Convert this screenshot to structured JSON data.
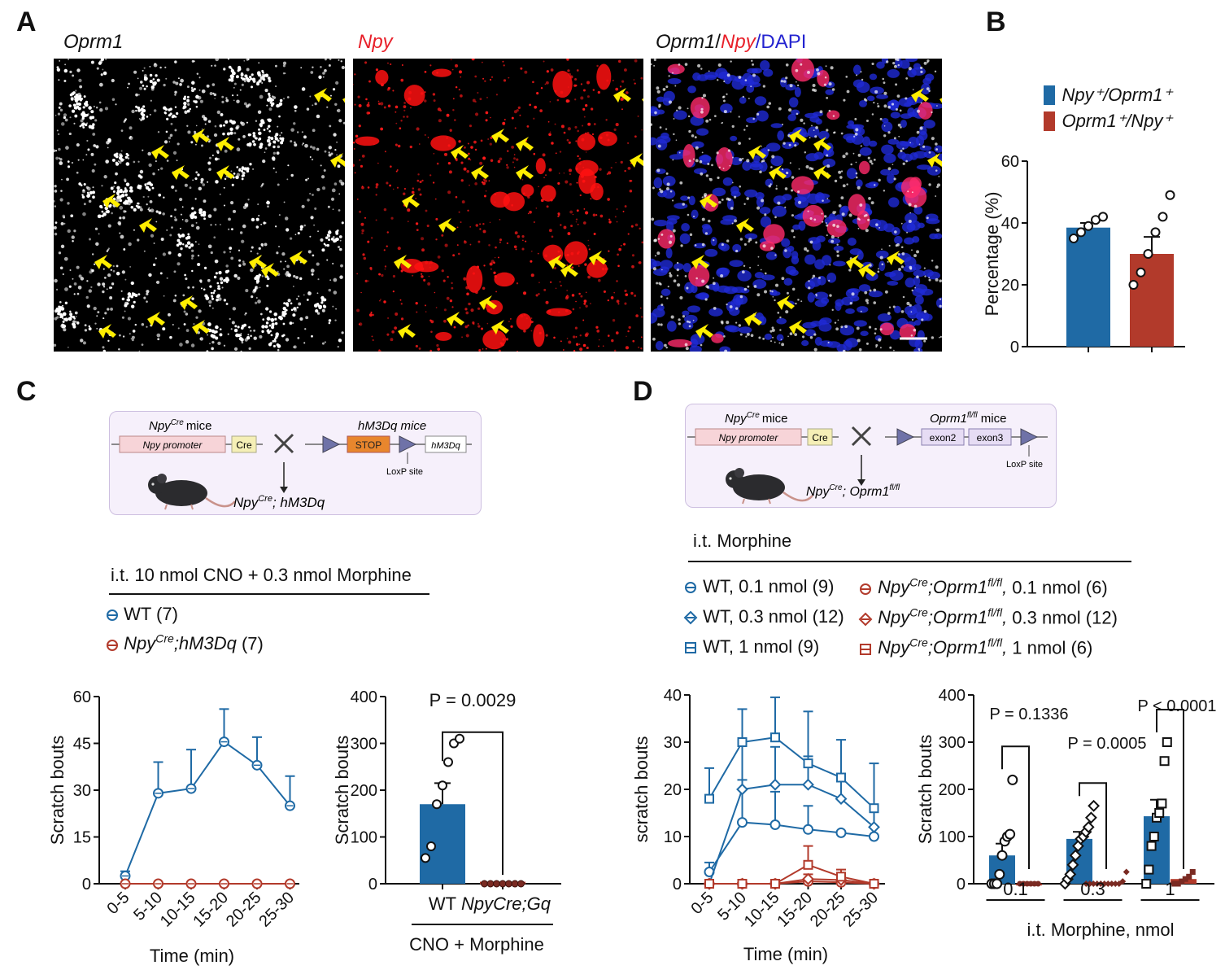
{
  "panels": {
    "A": {
      "letter": "A",
      "titles": {
        "oprm1": "Oprm1",
        "npy": "Npy",
        "merge_parts": [
          "Oprm1",
          "/",
          "Npy",
          "/",
          "DAPI"
        ]
      }
    },
    "B": {
      "letter": "B",
      "legend": [
        {
          "label": "Npy⁺/Oprm1⁺",
          "color": "#1f6aa5"
        },
        {
          "label": "Oprm1⁺/Npy⁺",
          "color": "#b23a2b"
        }
      ],
      "ylabel": "Percentage (%)",
      "yticks": [
        "0",
        "20",
        "40",
        "60"
      ]
    },
    "C": {
      "letter": "C",
      "schema": {
        "left_mouse": "Npy",
        "left_mouse_sup": "Cre",
        "left_mouse_suffix": "mice",
        "promoter": "Npy promoter",
        "cre": "Cre",
        "right_mouse": "hM3Dq mice",
        "stop": "STOP",
        "hm3dq": "hM3Dq",
        "loxp": "LoxP site",
        "result_a": "Npy",
        "result_sup": "Cre",
        "result_b": ";  hM3Dq"
      },
      "treatment": "i.t. 10 nmol CNO + 0.3 nmol Morphine",
      "legend": [
        {
          "label": "WT (7)"
        },
        {
          "label_a": "Npy",
          "label_sup": "Cre",
          "label_b": ";hM3Dq",
          "label_c": " (7)"
        }
      ],
      "line_ylabel": "Scratch bouts",
      "line_xlabel": "Time (min)",
      "bar_ylabel": "Scratch bouts",
      "bar_pvalue": "P = 0.0029",
      "bar_xcats": [
        "WT",
        "NpyCre;Gq"
      ],
      "bar_xgroup": "CNO + Morphine"
    },
    "D": {
      "letter": "D",
      "schema": {
        "left_mouse": "Npy",
        "left_mouse_sup": "Cre",
        "left_mouse_suffix": "mice",
        "promoter": "Npy promoter",
        "cre": "Cre",
        "right_mouse": "Oprm1",
        "right_mouse_sup": "fl/fl",
        "right_mouse_suffix": " mice",
        "exon2": "exon2",
        "exon3": "exon3",
        "loxp": "LoxP site",
        "result_a": "Npy",
        "result_sup": "Cre",
        "result_b": ";  Oprm1",
        "result_sup2": "fl/fl"
      },
      "treatment": "i.t. Morphine",
      "legend_left": [
        "WT, 0.1 nmol (9)",
        "WT, 0.3 nmol (12)",
        "WT, 1 nmol (9)"
      ],
      "legend_right": [
        {
          "dose": " 0.1 nmol (6)"
        },
        {
          "dose": " 0.3 nmol (12)"
        },
        {
          "dose": " 1 nmol (6)"
        }
      ],
      "legend_right_prefix": "Npy",
      "legend_right_sup": "Cre",
      "legend_right_mid": ";Oprm1",
      "legend_right_sup2": "fl/fl",
      "line_ylabel": "scratch bouts",
      "line_xlabel": "Time (min)",
      "bar_ylabel": "Scratch bouts",
      "bar_xlabel": "i.t. Morphine, nmol",
      "bar_pvalues": [
        "P = 0.1336",
        "P = 0.0005",
        "P < 0.0001"
      ]
    }
  },
  "chart_data": [
    {
      "id": "B",
      "type": "bar",
      "categories": [
        "Npy+/Oprm1+",
        "Oprm1+/Npy+"
      ],
      "values": [
        38.5,
        30
      ],
      "errors": [
        1.5,
        5.5
      ],
      "points": [
        [
          35,
          37,
          39,
          41,
          42
        ],
        [
          20,
          24,
          30,
          37,
          42,
          49
        ]
      ],
      "colors": [
        "#1f6aa5",
        "#b23a2b"
      ],
      "ylabel": "Percentage (%)",
      "ylim": [
        0,
        60
      ]
    },
    {
      "id": "C-line",
      "type": "line",
      "x": [
        "0-5",
        "5-10",
        "10-15",
        "15-20",
        "20-25",
        "25-30"
      ],
      "series": [
        {
          "name": "WT (7)",
          "values": [
            2.5,
            29,
            30.5,
            45.5,
            38,
            25
          ],
          "errors": [
            1.5,
            10,
            12.5,
            10.5,
            9,
            9.5
          ],
          "color": "#1f6aa5"
        },
        {
          "name": "NpyCre;hM3Dq (7)",
          "values": [
            0,
            0,
            0,
            0,
            0,
            0
          ],
          "errors": [
            0,
            0,
            0,
            0,
            0,
            0
          ],
          "color": "#b23a2b"
        }
      ],
      "xlabel": "Time (min)",
      "ylabel": "Scratch bouts",
      "ylim": [
        0,
        60
      ],
      "yticks": [
        0,
        15,
        30,
        45,
        60
      ]
    },
    {
      "id": "C-bar",
      "type": "bar",
      "categories": [
        "WT",
        "NpyCre;Gq"
      ],
      "values": [
        170,
        0
      ],
      "errors": [
        45,
        0
      ],
      "points": [
        [
          55,
          80,
          170,
          210,
          260,
          300,
          310
        ],
        [
          0,
          0,
          0,
          0,
          0,
          0,
          0
        ]
      ],
      "colors": [
        "#1f6aa5",
        "#b23a2b"
      ],
      "ylabel": "Scratch bouts",
      "ylim": [
        0,
        400
      ],
      "yticks": [
        0,
        100,
        200,
        300,
        400
      ],
      "pvalue": "P = 0.0029"
    },
    {
      "id": "D-line",
      "type": "line",
      "x": [
        "0-5",
        "5-10",
        "10-15",
        "15-20",
        "20-25",
        "25-30"
      ],
      "series": [
        {
          "name": "WT, 0.1 nmol (9)",
          "values": [
            2.5,
            13,
            12.5,
            11.5,
            10.8,
            10
          ],
          "errors": [
            2,
            9,
            7,
            5,
            0,
            0
          ],
          "color": "#1f6aa5",
          "marker": "circle"
        },
        {
          "name": "WT, 0.3 nmol (12)",
          "values": [
            0,
            20,
            21,
            21,
            18,
            12
          ],
          "errors": [
            0,
            10,
            8,
            6,
            5,
            4
          ],
          "color": "#1f6aa5",
          "marker": "diamond"
        },
        {
          "name": "WT, 1 nmol (9)",
          "values": [
            18,
            30,
            31,
            25.5,
            22.5,
            16
          ],
          "errors": [
            6.5,
            7,
            8.5,
            11,
            8,
            9.5
          ],
          "color": "#1f6aa5",
          "marker": "square"
        },
        {
          "name": "NpyCre;Oprm1fl/fl, 0.1 nmol (6)",
          "values": [
            0,
            0,
            0,
            0.5,
            0.3,
            0
          ],
          "errors": [
            0,
            0,
            0,
            0,
            0,
            0
          ],
          "color": "#b23a2b",
          "marker": "circle"
        },
        {
          "name": "NpyCre;Oprm1fl/fl, 0.3 nmol (12)",
          "values": [
            0,
            0,
            0,
            1,
            0.8,
            0
          ],
          "errors": [
            0,
            0,
            0,
            1,
            1,
            0
          ],
          "color": "#b23a2b",
          "marker": "diamond"
        },
        {
          "name": "NpyCre;Oprm1fl/fl, 1 nmol (6)",
          "values": [
            0,
            0,
            0,
            4,
            1.5,
            0
          ],
          "errors": [
            0,
            0,
            0,
            4,
            1.5,
            0
          ],
          "color": "#b23a2b",
          "marker": "square"
        }
      ],
      "xlabel": "Time (min)",
      "ylabel": "scratch bouts",
      "ylim": [
        0,
        40
      ],
      "yticks": [
        0,
        10,
        20,
        30,
        40
      ]
    },
    {
      "id": "D-bar",
      "type": "bar",
      "groups": [
        "0.1",
        "0.3",
        "1"
      ],
      "series": [
        {
          "name": "WT",
          "values": [
            60,
            95,
            143
          ],
          "errors": [
            25,
            15,
            35
          ],
          "color": "#1f6aa5",
          "points": [
            [
              0,
              0,
              0,
              20,
              60,
              90,
              100,
              105,
              220
            ],
            [
              0,
              10,
              20,
              40,
              60,
              80,
              95,
              100,
              110,
              120,
              140,
              165
            ],
            [
              0,
              30,
              80,
              100,
              140,
              150,
              170,
              260,
              300
            ]
          ]
        },
        {
          "name": "NpyCre;Oprm1fl/fl",
          "values": [
            0,
            2,
            10
          ],
          "errors": [
            0,
            1,
            4
          ],
          "color": "#b23a2b",
          "points": [
            [
              0,
              0,
              0,
              0,
              0,
              0
            ],
            [
              0,
              0,
              0,
              0,
              0,
              0,
              0,
              0,
              0,
              0,
              5,
              25
            ],
            [
              0,
              0,
              5,
              10,
              15,
              25
            ]
          ]
        }
      ],
      "xlabel": "i.t. Morphine, nmol",
      "ylabel": "Scratch bouts",
      "ylim": [
        0,
        400
      ],
      "yticks": [
        0,
        100,
        200,
        300,
        400
      ],
      "pvalues": [
        "P = 0.1336",
        "P = 0.0005",
        "P < 0.0001"
      ]
    }
  ]
}
